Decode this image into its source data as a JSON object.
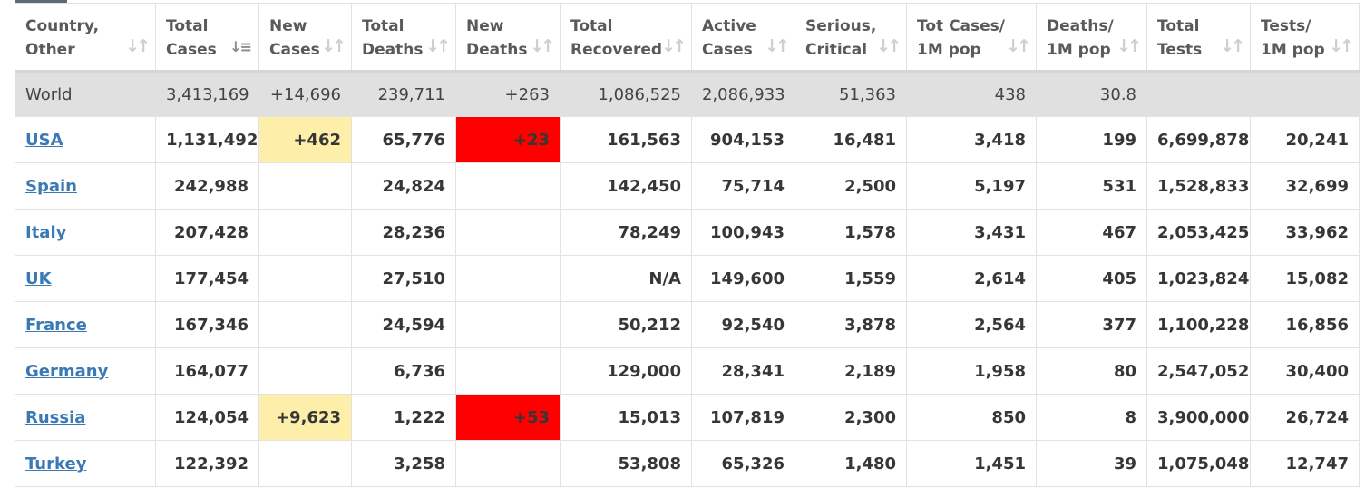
{
  "columns": [
    {
      "label": "Country,\nOther",
      "sort_icon": "sort-arrows-icon"
    },
    {
      "label": "Total\nCases",
      "sort_icon": "sort-desc-icon"
    },
    {
      "label": "New\nCases",
      "sort_icon": "sort-arrows-icon"
    },
    {
      "label": "Total\nDeaths",
      "sort_icon": "sort-arrows-icon"
    },
    {
      "label": "New\nDeaths",
      "sort_icon": "sort-arrows-icon"
    },
    {
      "label": "Total\nRecovered",
      "sort_icon": "sort-arrows-icon"
    },
    {
      "label": "Active\nCases",
      "sort_icon": "sort-arrows-icon"
    },
    {
      "label": "Serious,\nCritical",
      "sort_icon": "sort-arrows-icon"
    },
    {
      "label": "Tot Cases/\n1M pop",
      "sort_icon": "sort-arrows-icon"
    },
    {
      "label": "Deaths/\n1M pop",
      "sort_icon": "sort-arrows-icon"
    },
    {
      "label": "Total\nTests",
      "sort_icon": "sort-arrows-icon"
    },
    {
      "label": "Tests/\n1M pop",
      "sort_icon": "sort-arrows-icon"
    }
  ],
  "world": [
    "World",
    "3,413,169",
    "+14,696",
    "239,711",
    "+263",
    "1,086,525",
    "2,086,933",
    "51,363",
    "438",
    "30.8",
    "",
    ""
  ],
  "rows": [
    [
      "USA",
      "1,131,492",
      "+462",
      "65,776",
      "+23",
      "161,563",
      "904,153",
      "16,481",
      "3,418",
      "199",
      "6,699,878",
      "20,241"
    ],
    [
      "Spain",
      "242,988",
      "",
      "24,824",
      "",
      "142,450",
      "75,714",
      "2,500",
      "5,197",
      "531",
      "1,528,833",
      "32,699"
    ],
    [
      "Italy",
      "207,428",
      "",
      "28,236",
      "",
      "78,249",
      "100,943",
      "1,578",
      "3,431",
      "467",
      "2,053,425",
      "33,962"
    ],
    [
      "UK",
      "177,454",
      "",
      "27,510",
      "",
      "N/A",
      "149,600",
      "1,559",
      "2,614",
      "405",
      "1,023,824",
      "15,082"
    ],
    [
      "France",
      "167,346",
      "",
      "24,594",
      "",
      "50,212",
      "92,540",
      "3,878",
      "2,564",
      "377",
      "1,100,228",
      "16,856"
    ],
    [
      "Germany",
      "164,077",
      "",
      "6,736",
      "",
      "129,000",
      "28,341",
      "2,189",
      "1,958",
      "80",
      "2,547,052",
      "30,400"
    ],
    [
      "Russia",
      "124,054",
      "+9,623",
      "1,222",
      "+53",
      "15,013",
      "107,819",
      "2,300",
      "850",
      "8",
      "3,900,000",
      "26,724"
    ],
    [
      "Turkey",
      "122,392",
      "",
      "3,258",
      "",
      "53,808",
      "65,326",
      "1,480",
      "1,451",
      "39",
      "1,075,048",
      "12,747"
    ]
  ],
  "colors": {
    "new_cases_highlight": "#fdeeaa",
    "new_deaths_highlight": "#ff0000",
    "link": "#3b79b4",
    "world_row_bg": "#e0e0e0"
  }
}
